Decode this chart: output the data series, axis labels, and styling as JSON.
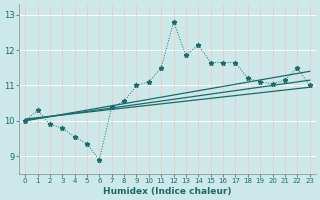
{
  "title": "",
  "xlabel": "Humidex (Indice chaleur)",
  "bg_color": "#cce8e8",
  "grid_color_h": "#ffffff",
  "grid_color_v": "#f0c8c8",
  "line_color": "#1a6b6b",
  "xlim": [
    -0.5,
    23.5
  ],
  "ylim": [
    8.5,
    13.3
  ],
  "yticks": [
    9,
    10,
    11,
    12,
    13
  ],
  "ytick_labels": [
    "9",
    "10",
    "11",
    "12",
    "13"
  ],
  "xticks": [
    0,
    1,
    2,
    3,
    4,
    5,
    6,
    7,
    8,
    9,
    10,
    11,
    12,
    13,
    14,
    15,
    16,
    17,
    18,
    19,
    20,
    21,
    22,
    23
  ],
  "main_line_x": [
    0,
    1,
    2,
    3,
    4,
    5,
    6,
    7,
    8,
    9,
    10,
    11,
    12,
    13,
    14,
    15,
    16,
    17,
    18,
    19,
    20,
    21,
    22,
    23
  ],
  "main_line_y": [
    10.0,
    10.3,
    9.9,
    9.8,
    9.55,
    9.35,
    8.9,
    10.4,
    10.55,
    11.0,
    11.1,
    11.5,
    12.8,
    11.85,
    12.15,
    11.65,
    11.65,
    11.65,
    11.2,
    11.1,
    11.05,
    11.15,
    11.5,
    11.0
  ],
  "regression_lines": [
    {
      "x": [
        0,
        23
      ],
      "y": [
        10.0,
        11.4
      ]
    },
    {
      "x": [
        0,
        23
      ],
      "y": [
        10.02,
        11.15
      ]
    },
    {
      "x": [
        0,
        23
      ],
      "y": [
        10.05,
        10.95
      ]
    }
  ]
}
